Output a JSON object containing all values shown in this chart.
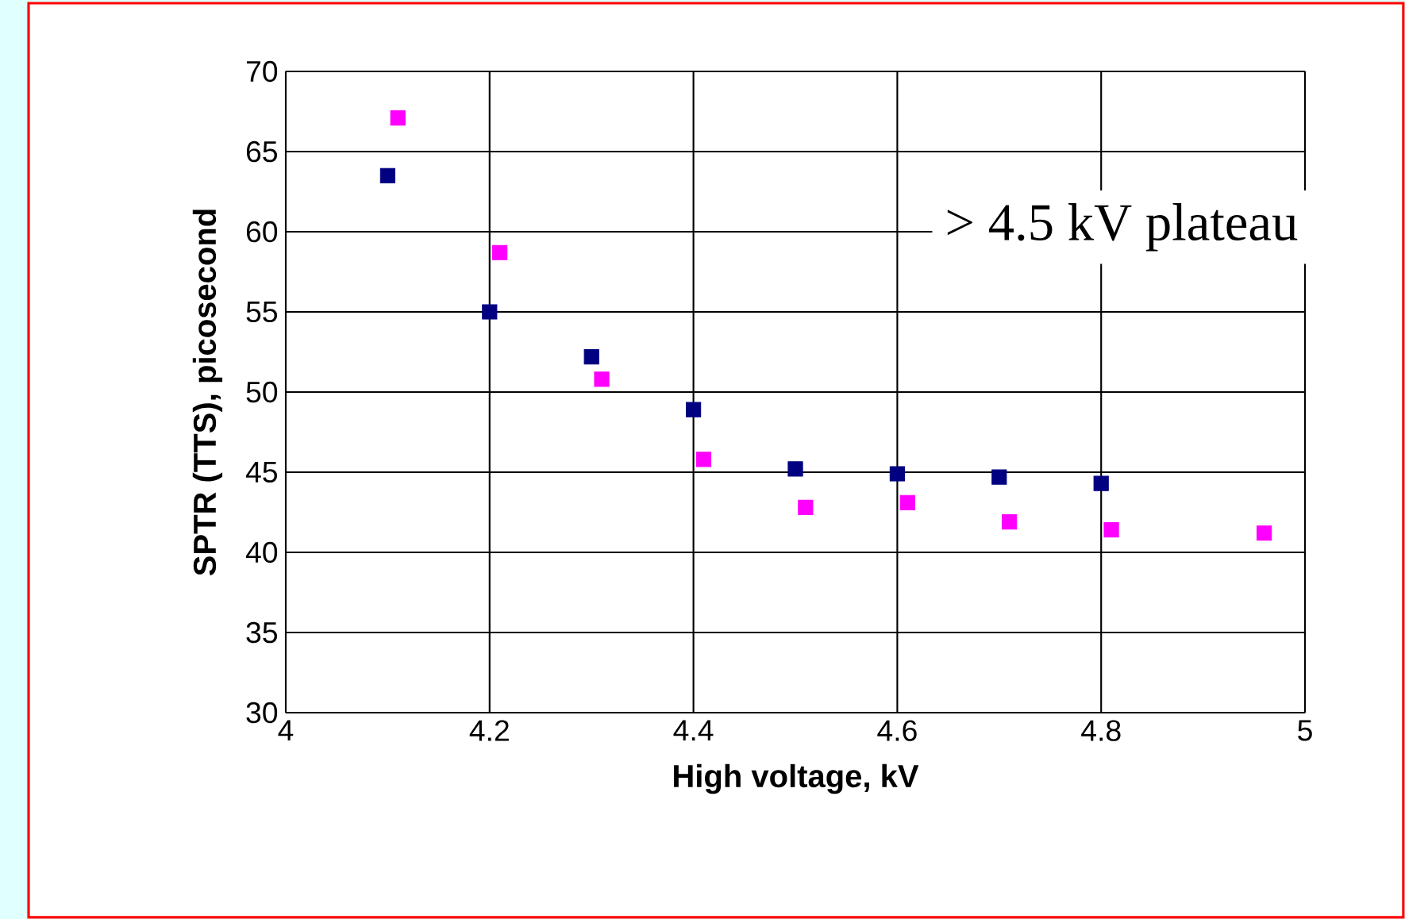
{
  "chart_data": {
    "type": "scatter",
    "xlabel": "High voltage, kV",
    "ylabel": "SPTR (TTS), picosecond",
    "xlim": [
      4,
      5
    ],
    "xticks": [
      4,
      4.2,
      4.4,
      4.6,
      4.8,
      5
    ],
    "ylim": [
      30,
      70
    ],
    "yticks": [
      30,
      35,
      40,
      45,
      50,
      55,
      60,
      65,
      70
    ],
    "grid": true,
    "marker": "square",
    "series": [
      {
        "color": "#000080",
        "x": [
          4.1,
          4.2,
          4.3,
          4.4,
          4.5,
          4.6,
          4.7,
          4.8
        ],
        "values": [
          63.5,
          55.0,
          52.2,
          48.9,
          45.2,
          44.9,
          44.7,
          44.3
        ]
      },
      {
        "color": "#ff00ff",
        "x": [
          4.11,
          4.21,
          4.31,
          4.41,
          4.51,
          4.61,
          4.71,
          4.81,
          4.96
        ],
        "values": [
          67.1,
          58.7,
          50.8,
          45.8,
          42.8,
          43.1,
          41.9,
          41.4,
          41.2
        ]
      }
    ],
    "annotations": [
      "> 4.5 kV plateau"
    ]
  }
}
